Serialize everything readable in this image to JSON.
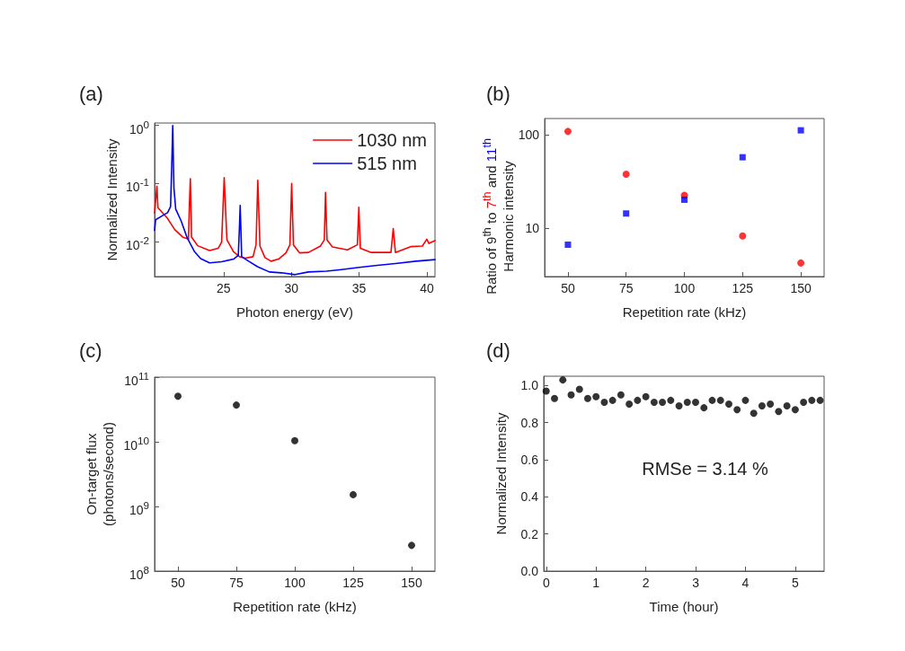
{
  "chart_data": [
    {
      "type": "line",
      "title": "(a)",
      "xlabel": "Photon energy (eV)",
      "ylabel": "Normalized Intensity",
      "log": "y",
      "marker": "none",
      "grid": false,
      "legend": "top right",
      "xlim": [
        19.9,
        40.6
      ],
      "xticks": [
        25,
        30,
        35,
        40
      ],
      "ylim": [
        0.0025,
        1.1
      ],
      "yticks": [
        {
          "value": 0.01,
          "label": "10$^{-2}$"
        },
        {
          "value": 0.1,
          "label": "10$^{-1}$"
        },
        {
          "value": 1,
          "label": "10$^{0}$"
        }
      ],
      "series": [
        {
          "name": "1030 nm",
          "color": "#ff0000",
          "x": [
            19.9,
            20.07,
            20.15,
            20.4,
            20.86,
            21.4,
            21.97,
            22.4,
            22.48,
            22.54,
            22.63,
            23.08,
            23.96,
            24.6,
            24.85,
            25.04,
            25.24,
            25.73,
            26.17,
            26.6,
            27.17,
            27.39,
            27.52,
            27.68,
            28.05,
            28.5,
            29.05,
            29.6,
            29.89,
            30.02,
            30.15,
            30.6,
            31.26,
            32.15,
            32.43,
            32.52,
            32.63,
            33.03,
            34.14,
            34.87,
            34.98,
            35.09,
            35.9,
            37.35,
            37.52,
            37.68,
            38.8,
            39.67,
            40.0,
            40.15,
            40.6
          ],
          "values": [
            0.031,
            0.09,
            0.038,
            0.033,
            0.025,
            0.016,
            0.012,
            0.011,
            0.05,
            0.121,
            0.012,
            0.0085,
            0.007,
            0.0077,
            0.0098,
            0.126,
            0.0107,
            0.0067,
            0.0055,
            0.0052,
            0.0055,
            0.0088,
            0.114,
            0.0084,
            0.0053,
            0.0046,
            0.005,
            0.0064,
            0.0088,
            0.1,
            0.0088,
            0.0064,
            0.0065,
            0.0084,
            0.0107,
            0.07,
            0.0107,
            0.0081,
            0.0072,
            0.0088,
            0.039,
            0.0077,
            0.0065,
            0.0065,
            0.0168,
            0.0065,
            0.0082,
            0.0084,
            0.011,
            0.0093,
            0.0104
          ]
        },
        {
          "name": "515 nm",
          "color": "#0000ff",
          "x": [
            19.9,
            19.98,
            20.4,
            20.86,
            21.08,
            21.17,
            21.24,
            21.33,
            21.46,
            21.86,
            22.3,
            22.85,
            23.3,
            23.96,
            24.85,
            25.73,
            26.08,
            26.17,
            26.22,
            26.33,
            26.84,
            27.5,
            28.38,
            29.27,
            30.27,
            31.26,
            32.59,
            33.69,
            35.02,
            36.35,
            37.68,
            39.2,
            40.6
          ],
          "values": [
            0.0156,
            0.0238,
            0.0273,
            0.0315,
            0.04,
            0.216,
            1.0,
            0.084,
            0.0363,
            0.0227,
            0.0117,
            0.0067,
            0.0051,
            0.0043,
            0.0045,
            0.005,
            0.0058,
            0.0188,
            0.042,
            0.0055,
            0.0046,
            0.0037,
            0.003,
            0.0029,
            0.0027,
            0.003,
            0.0031,
            0.0033,
            0.0036,
            0.0039,
            0.0042,
            0.0046,
            0.0049
          ]
        }
      ]
    },
    {
      "type": "scatter",
      "title": "(b)",
      "xlabel": "Repetition rate (kHz)",
      "ylabel": "Ratio of 9$^{th}$ to 7$^{th}$ and 11$^{th}$\nHarmonic intensity",
      "log": "y",
      "grid": false,
      "x": [
        50,
        75,
        100,
        125,
        150
      ],
      "xlim": [
        40,
        160
      ],
      "xticks": [
        50,
        75,
        100,
        125,
        150
      ],
      "ylim": [
        3,
        150
      ],
      "yticks": [
        10,
        100
      ],
      "series": [
        {
          "color": "#ff0000",
          "marker": "circle",
          "values": [
            109,
            37.8,
            22.4,
            8.2,
            4.2
          ]
        },
        {
          "color": "#0000ff",
          "marker": "square",
          "values": [
            6.6,
            14.3,
            20.1,
            57.5,
            112
          ]
        }
      ]
    },
    {
      "type": "scatter",
      "title": "(c)",
      "xlabel": "Repetition rate (kHz)",
      "ylabel": "On-target flux\n(photons/second)",
      "log": "y",
      "grid": false,
      "marker": "circle",
      "x": [
        50,
        75,
        100,
        125,
        150
      ],
      "xlim": [
        40,
        160
      ],
      "xticks": [
        50,
        75,
        100,
        125,
        150
      ],
      "ylim": [
        100000000,
        100000000000
      ],
      "yticks": [
        {
          "value": 100000000,
          "label": "10$^{8}$"
        },
        {
          "value": 1000000000,
          "label": "10$^{9}$"
        },
        {
          "value": 10000000000,
          "label": "10$^{10}$"
        },
        {
          "value": 100000000000,
          "label": "10$^{11}$"
        }
      ],
      "series": [
        {
          "color": "#000000",
          "values": [
            50600000000,
            37000000000,
            10400000000,
            1520000000,
            250000000
          ]
        }
      ]
    },
    {
      "type": "scatter",
      "title": "(d)",
      "xlabel": "Time (hour)",
      "ylabel": "Normalized Intensity",
      "grid": false,
      "marker": "circle",
      "annotations": [
        "RMSe = 3.14 %"
      ],
      "x": [
        0,
        0.167,
        0.333,
        0.5,
        0.667,
        0.833,
        1.0,
        1.167,
        1.333,
        1.5,
        1.667,
        1.833,
        2.0,
        2.167,
        2.333,
        2.5,
        2.667,
        2.833,
        3.0,
        3.167,
        3.333,
        3.5,
        3.667,
        3.833,
        4.0,
        4.167,
        4.333,
        4.5,
        4.667,
        4.833,
        5.0,
        5.167,
        5.333,
        5.5
      ],
      "xlim": [
        -0.05,
        5.58
      ],
      "xticks": [
        0,
        1,
        2,
        3,
        4,
        5
      ],
      "ylim": [
        0,
        1.05
      ],
      "yticks": [
        {
          "value": 0,
          "label": "0.0"
        },
        {
          "value": 0.2,
          "label": "0.2"
        },
        {
          "value": 0.4,
          "label": "0.4"
        },
        {
          "value": 0.6,
          "label": "0.6"
        },
        {
          "value": 0.8,
          "label": "0.8"
        },
        {
          "value": 1,
          "label": "1.0"
        }
      ],
      "series": [
        {
          "color": "#000000",
          "values": [
            0.97,
            0.93,
            1.03,
            0.95,
            0.98,
            0.93,
            0.94,
            0.91,
            0.92,
            0.95,
            0.9,
            0.92,
            0.94,
            0.91,
            0.91,
            0.92,
            0.89,
            0.91,
            0.91,
            0.88,
            0.92,
            0.92,
            0.9,
            0.87,
            0.92,
            0.85,
            0.89,
            0.9,
            0.86,
            0.89,
            0.87,
            0.91,
            0.92,
            0.92
          ]
        }
      ]
    }
  ]
}
